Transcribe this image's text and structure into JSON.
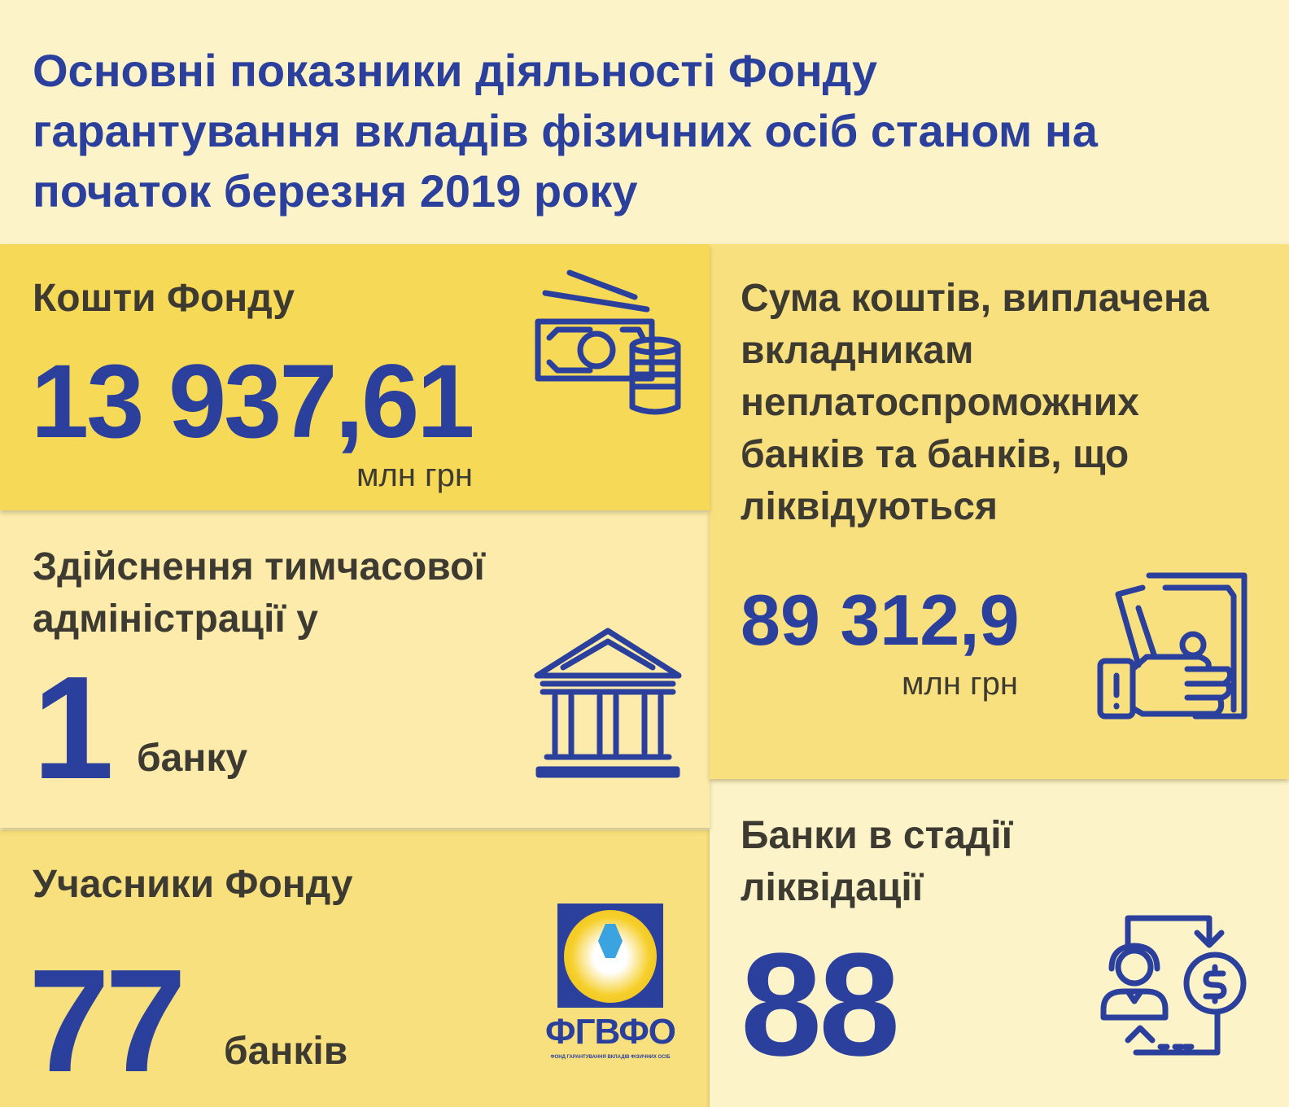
{
  "title": "Основні показники діяльності Фонду гарантування вкладів фізичних осіб станом на початок березня 2019 року",
  "funds": {
    "label": "Кошти Фонду",
    "value": "13 937,61",
    "unit": "млн грн",
    "icon": "money-coins-icon"
  },
  "temp_admin": {
    "label": "Здійснення тимчасової адміністрації у",
    "value": "1",
    "unit": "банку",
    "icon": "bank-building-icon"
  },
  "members": {
    "label": "Учасники Фонду",
    "value": "77",
    "unit": "банків",
    "logo_text": "ФГВФО",
    "logo_subtext": "ФОНД ГАРАНТУВАННЯ ВКЛАДІВ ФІЗИЧНИХ ОСІБ"
  },
  "paid": {
    "label": "Сума коштів, виплачена вкладникам неплатоспроможних банків та банків, що ліквідуються",
    "value": "89 312,9",
    "unit": "млн грн",
    "icon": "hand-money-icon"
  },
  "liquidation": {
    "label": "Банки в стадії ліквідації",
    "value": "88",
    "icon": "person-exchange-icon"
  },
  "colors": {
    "blue": "#2b3f9c",
    "panel_strong": "#f6d957",
    "panel_light": "#fcebab",
    "panel_mid": "#f8e07e",
    "background": "#fcf3c8"
  }
}
